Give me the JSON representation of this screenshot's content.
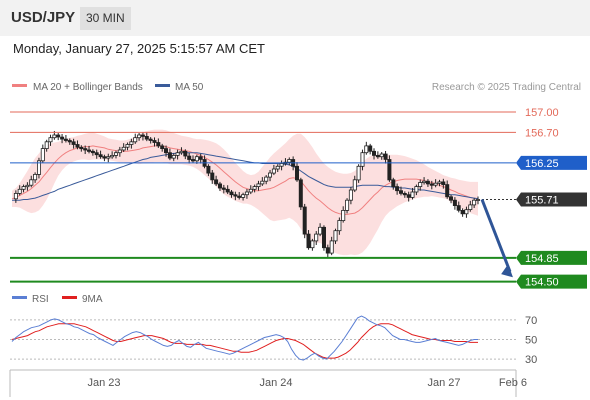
{
  "header": {
    "symbol": "USD/JPY",
    "timeframe": "30 MIN"
  },
  "datetime": "Monday, January 27, 2025 5:15:57 AM CET",
  "legend": {
    "ma20_bb": "MA 20 + Bollinger Bands",
    "ma50": "MA 50"
  },
  "credit": "Research © 2025 Trading Central",
  "rsi_legend": {
    "rsi": "RSI",
    "ma9": "9MA"
  },
  "colors": {
    "resistance": "#e36a5a",
    "pivot": "#1f5fc9",
    "support": "#1f8a1f",
    "current": "#333333",
    "bollinger": "#fbd7d7",
    "ma20": "#f08080",
    "ma50": "#3a5b9a",
    "rsi": "#5b7fd4",
    "rsi_ma": "#e02020",
    "arrow": "#2f5597"
  },
  "chart_data": [
    {
      "type": "candlestick",
      "title": "USD/JPY",
      "x_ticks": [
        "Jan 23",
        "Jan 24",
        "Jan 27",
        "Feb 6"
      ],
      "ylim": [
        154.45,
        157.25
      ],
      "grid": false,
      "levels": [
        {
          "label": "157.00",
          "value": 157.0,
          "kind": "resistance"
        },
        {
          "label": "156.70",
          "value": 156.7,
          "kind": "resistance"
        },
        {
          "label": "156.25",
          "value": 156.25,
          "kind": "pivot"
        },
        {
          "label": "155.71",
          "value": 155.71,
          "kind": "current"
        },
        {
          "label": "154.85",
          "value": 154.85,
          "kind": "support"
        },
        {
          "label": "154.50",
          "value": 154.5,
          "kind": "support"
        }
      ],
      "close": [
        155.72,
        155.8,
        155.86,
        155.9,
        155.92,
        156.0,
        156.08,
        156.28,
        156.46,
        156.56,
        156.62,
        156.66,
        156.63,
        156.6,
        156.58,
        156.56,
        156.52,
        156.48,
        156.46,
        156.44,
        156.42,
        156.4,
        156.37,
        156.34,
        156.32,
        156.34,
        156.36,
        156.4,
        156.44,
        156.48,
        156.52,
        156.56,
        156.62,
        156.66,
        156.64,
        156.6,
        156.58,
        156.55,
        156.5,
        156.46,
        156.4,
        156.32,
        156.36,
        156.4,
        156.42,
        156.35,
        156.3,
        156.28,
        156.34,
        156.3,
        156.2,
        156.1,
        156.0,
        155.94,
        155.88,
        155.86,
        155.82,
        155.78,
        155.76,
        155.74,
        155.78,
        155.82,
        155.86,
        155.9,
        155.94,
        155.98,
        156.04,
        156.1,
        156.16,
        156.2,
        156.24,
        156.26,
        156.3,
        156.2,
        156.0,
        155.6,
        155.2,
        155.0,
        155.1,
        155.2,
        155.3,
        155.0,
        154.92,
        155.1,
        155.25,
        155.4,
        155.55,
        155.7,
        155.85,
        156.0,
        156.2,
        156.4,
        156.5,
        156.42,
        156.36,
        156.34,
        156.38,
        156.3,
        156.0,
        155.9,
        155.84,
        155.8,
        155.78,
        155.74,
        155.82,
        155.9,
        155.96,
        155.98,
        155.94,
        155.92,
        155.95,
        155.97,
        155.93,
        155.75,
        155.7,
        155.62,
        155.55,
        155.5,
        155.56,
        155.63,
        155.7,
        155.71
      ],
      "ma20": [
        155.72,
        155.74,
        155.77,
        155.8,
        155.83,
        155.87,
        155.92,
        155.97,
        156.04,
        156.11,
        156.18,
        156.25,
        156.31,
        156.36,
        156.4,
        156.43,
        156.45,
        156.47,
        156.48,
        156.49,
        156.49,
        156.5,
        156.49,
        156.48,
        156.47,
        156.45,
        156.44,
        156.43,
        156.42,
        156.42,
        156.42,
        156.43,
        156.44,
        156.45,
        156.47,
        156.48,
        156.49,
        156.5,
        156.5,
        156.5,
        156.49,
        156.47,
        156.46,
        156.45,
        156.44,
        156.43,
        156.42,
        156.4,
        156.38,
        156.36,
        156.33,
        156.3,
        156.26,
        156.22,
        156.17,
        156.12,
        156.07,
        156.02,
        155.97,
        155.93,
        155.89,
        155.87,
        155.85,
        155.84,
        155.84,
        155.85,
        155.86,
        155.87,
        155.89,
        155.92,
        155.95,
        155.98,
        156.02,
        156.03,
        156.02,
        155.98,
        155.91,
        155.84,
        155.78,
        155.73,
        155.69,
        155.64,
        155.59,
        155.55,
        155.52,
        155.5,
        155.49,
        155.49,
        155.5,
        155.51,
        155.54,
        155.59,
        155.65,
        155.71,
        155.77,
        155.82,
        155.88,
        155.92,
        155.95,
        155.97,
        155.99,
        156.0,
        156.01,
        156.01,
        156.01,
        156.01,
        156.0,
        155.99,
        155.97,
        155.96,
        155.94,
        155.92,
        155.9,
        155.88,
        155.85,
        155.83,
        155.8,
        155.78,
        155.76,
        155.74,
        155.73,
        155.72
      ],
      "ma50": [
        155.7,
        155.7,
        155.7,
        155.71,
        155.71,
        155.72,
        155.73,
        155.75,
        155.77,
        155.79,
        155.81,
        155.83,
        155.86,
        155.88,
        155.9,
        155.92,
        155.94,
        155.96,
        155.98,
        156.0,
        156.02,
        156.04,
        156.06,
        156.08,
        156.1,
        156.12,
        156.14,
        156.16,
        156.18,
        156.2,
        156.22,
        156.24,
        156.26,
        156.28,
        156.3,
        156.31,
        156.33,
        156.34,
        156.35,
        156.36,
        156.37,
        156.38,
        156.39,
        156.39,
        156.4,
        156.4,
        156.4,
        156.4,
        156.4,
        156.39,
        156.38,
        156.37,
        156.36,
        156.35,
        156.34,
        156.33,
        156.32,
        156.31,
        156.3,
        156.29,
        156.28,
        156.27,
        156.26,
        156.25,
        156.25,
        156.24,
        156.24,
        156.24,
        156.24,
        156.24,
        156.23,
        156.23,
        156.22,
        156.2,
        156.17,
        156.13,
        156.09,
        156.05,
        156.02,
        155.99,
        155.96,
        155.93,
        155.91,
        155.9,
        155.89,
        155.89,
        155.89,
        155.89,
        155.89,
        155.9,
        155.91,
        155.92,
        155.92,
        155.92,
        155.92,
        155.92,
        155.91,
        155.9,
        155.9,
        155.89,
        155.89,
        155.88,
        155.88,
        155.87,
        155.86,
        155.86,
        155.85,
        155.85,
        155.84,
        155.83,
        155.82,
        155.81,
        155.8,
        155.79,
        155.78,
        155.78,
        155.77,
        155.76,
        155.75,
        155.74,
        155.73,
        155.72
      ],
      "bb_half_width": [
        0.12,
        0.14,
        0.18,
        0.24,
        0.3,
        0.36,
        0.4,
        0.42,
        0.42,
        0.4,
        0.36,
        0.3,
        0.25,
        0.22,
        0.2,
        0.19,
        0.18,
        0.18,
        0.18,
        0.19,
        0.2,
        0.2,
        0.19,
        0.18,
        0.17,
        0.16,
        0.16,
        0.16,
        0.16,
        0.16,
        0.17,
        0.18,
        0.2,
        0.22,
        0.23,
        0.24,
        0.24,
        0.24,
        0.24,
        0.24,
        0.24,
        0.24,
        0.23,
        0.22,
        0.21,
        0.21,
        0.21,
        0.21,
        0.22,
        0.24,
        0.26,
        0.28,
        0.3,
        0.32,
        0.33,
        0.33,
        0.32,
        0.3,
        0.28,
        0.26,
        0.24,
        0.22,
        0.22,
        0.24,
        0.28,
        0.34,
        0.4,
        0.46,
        0.5,
        0.52,
        0.54,
        0.56,
        0.58,
        0.62,
        0.66,
        0.7,
        0.72,
        0.72,
        0.7,
        0.66,
        0.62,
        0.6,
        0.6,
        0.6,
        0.6,
        0.6,
        0.6,
        0.6,
        0.6,
        0.62,
        0.64,
        0.66,
        0.66,
        0.64,
        0.6,
        0.55,
        0.5,
        0.45,
        0.42,
        0.4,
        0.38,
        0.36,
        0.34,
        0.32,
        0.3,
        0.28,
        0.26,
        0.24,
        0.22,
        0.2,
        0.19,
        0.18,
        0.17,
        0.17,
        0.18,
        0.19,
        0.2,
        0.21,
        0.22,
        0.23,
        0.24,
        0.25
      ],
      "forecast": {
        "from": 155.71,
        "to": 154.5
      }
    },
    {
      "type": "line",
      "title": "RSI",
      "y_ticks": [
        "70",
        "50",
        "30"
      ],
      "ylim": [
        25,
        75
      ],
      "series": [
        {
          "name": "RSI",
          "values": [
            48,
            52,
            55,
            58,
            60,
            62,
            63,
            64,
            66,
            68,
            70,
            71,
            70,
            68,
            66,
            65,
            63,
            62,
            60,
            58,
            56,
            55,
            52,
            50,
            48,
            46,
            44,
            47,
            50,
            53,
            55,
            57,
            58,
            57,
            55,
            53,
            50,
            48,
            46,
            44,
            43,
            44,
            47,
            49,
            46,
            43,
            42,
            45,
            47,
            44,
            41,
            40,
            39,
            38,
            37,
            36,
            35,
            36,
            38,
            40,
            42,
            44,
            46,
            48,
            50,
            52,
            53,
            54,
            55,
            54,
            52,
            48,
            40,
            34,
            30,
            29,
            31,
            34,
            36,
            33,
            31,
            30,
            34,
            38,
            43,
            48,
            54,
            60,
            66,
            72,
            74,
            72,
            69,
            67,
            65,
            64,
            62,
            58,
            54,
            52,
            50,
            50,
            49,
            48,
            47,
            47,
            48,
            49,
            50,
            51,
            49,
            48,
            47,
            46,
            45,
            44,
            45,
            47,
            49,
            50,
            50
          ]
        },
        {
          "name": "9MA",
          "values": [
            50,
            51,
            52,
            53,
            54,
            56,
            58,
            59,
            61,
            63,
            64,
            65,
            66,
            66,
            66,
            66,
            66,
            65,
            64,
            63,
            61,
            59,
            57,
            55,
            53,
            51,
            49,
            48,
            48,
            49,
            50,
            51,
            52,
            53,
            54,
            54,
            54,
            53,
            52,
            51,
            49,
            47,
            46,
            46,
            46,
            45,
            45,
            45,
            45,
            45,
            44,
            44,
            43,
            42,
            41,
            40,
            39,
            38,
            38,
            37,
            37,
            37,
            38,
            39,
            41,
            43,
            45,
            47,
            49,
            50,
            51,
            51,
            50,
            49,
            47,
            45,
            42,
            39,
            36,
            34,
            32,
            31,
            31,
            31,
            32,
            34,
            36,
            39,
            43,
            47,
            52,
            56,
            60,
            63,
            65,
            66,
            66,
            66,
            65,
            63,
            61,
            59,
            57,
            55,
            54,
            53,
            52,
            51,
            50,
            50,
            49,
            49,
            49,
            49,
            48,
            48,
            48,
            48,
            47,
            47,
            47
          ]
        }
      ]
    }
  ]
}
